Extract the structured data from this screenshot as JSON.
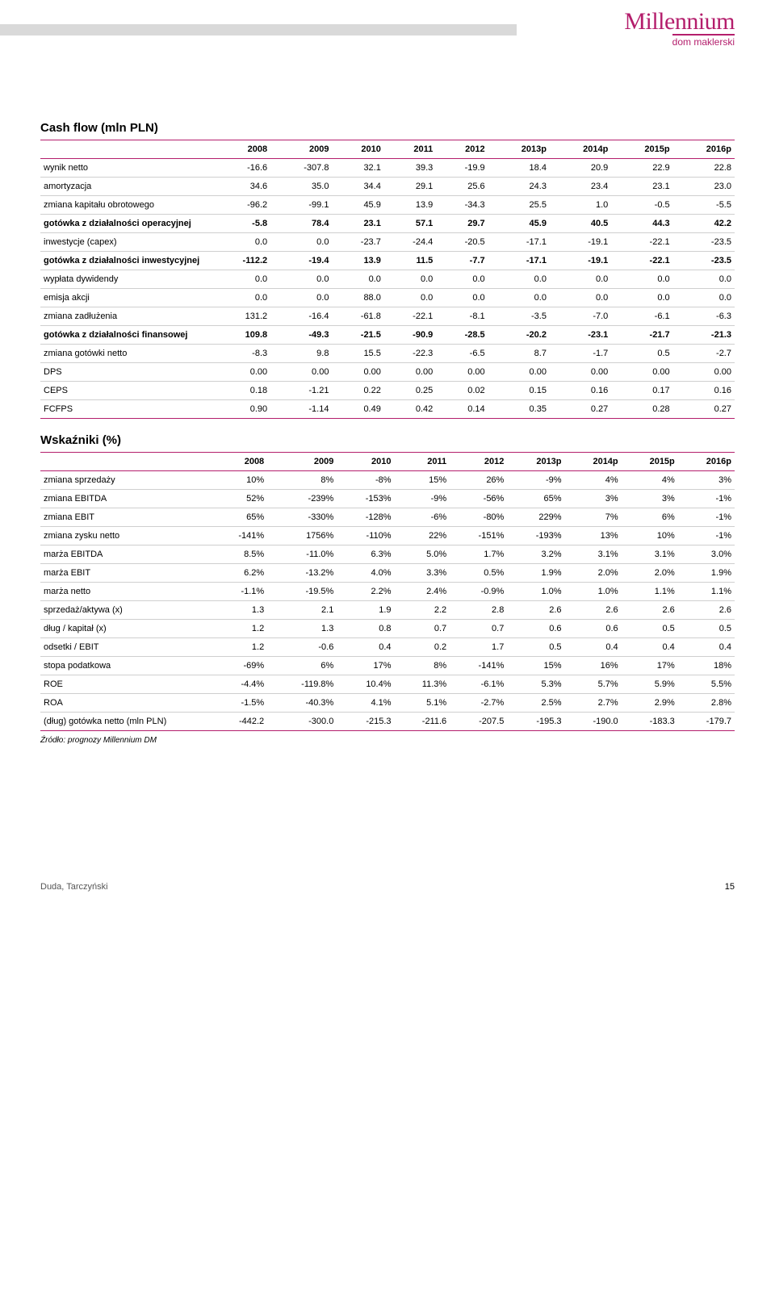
{
  "logo": {
    "main": "Millennium",
    "sub": "dom maklerski"
  },
  "cashflow": {
    "title": "Cash flow (mln PLN)",
    "headers": [
      "",
      "2008",
      "2009",
      "2010",
      "2011",
      "2012",
      "2013p",
      "2014p",
      "2015p",
      "2016p"
    ],
    "rows": [
      {
        "bold": false,
        "cells": [
          "wynik netto",
          "-16.6",
          "-307.8",
          "32.1",
          "39.3",
          "-19.9",
          "18.4",
          "20.9",
          "22.9",
          "22.8"
        ]
      },
      {
        "bold": false,
        "cells": [
          "amortyzacja",
          "34.6",
          "35.0",
          "34.4",
          "29.1",
          "25.6",
          "24.3",
          "23.4",
          "23.1",
          "23.0"
        ]
      },
      {
        "bold": false,
        "cells": [
          "zmiana kapitału obrotowego",
          "-96.2",
          "-99.1",
          "45.9",
          "13.9",
          "-34.3",
          "25.5",
          "1.0",
          "-0.5",
          "-5.5"
        ]
      },
      {
        "bold": true,
        "cells": [
          "gotówka z działalności operacyjnej",
          "-5.8",
          "78.4",
          "23.1",
          "57.1",
          "29.7",
          "45.9",
          "40.5",
          "44.3",
          "42.2"
        ]
      },
      {
        "bold": false,
        "cells": [
          "inwestycje (capex)",
          "0.0",
          "0.0",
          "-23.7",
          "-24.4",
          "-20.5",
          "-17.1",
          "-19.1",
          "-22.1",
          "-23.5"
        ]
      },
      {
        "bold": true,
        "cells": [
          "gotówka z działalności inwestycyjnej",
          "-112.2",
          "-19.4",
          "13.9",
          "11.5",
          "-7.7",
          "-17.1",
          "-19.1",
          "-22.1",
          "-23.5"
        ]
      },
      {
        "bold": false,
        "cells": [
          "wypłata dywidendy",
          "0.0",
          "0.0",
          "0.0",
          "0.0",
          "0.0",
          "0.0",
          "0.0",
          "0.0",
          "0.0"
        ]
      },
      {
        "bold": false,
        "cells": [
          "emisja akcji",
          "0.0",
          "0.0",
          "88.0",
          "0.0",
          "0.0",
          "0.0",
          "0.0",
          "0.0",
          "0.0"
        ]
      },
      {
        "bold": false,
        "cells": [
          "zmiana zadłużenia",
          "131.2",
          "-16.4",
          "-61.8",
          "-22.1",
          "-8.1",
          "-3.5",
          "-7.0",
          "-6.1",
          "-6.3"
        ]
      },
      {
        "bold": true,
        "cells": [
          "gotówka z działalności finansowej",
          "109.8",
          "-49.3",
          "-21.5",
          "-90.9",
          "-28.5",
          "-20.2",
          "-23.1",
          "-21.7",
          "-21.3"
        ]
      },
      {
        "bold": false,
        "cells": [
          "zmiana gotówki netto",
          "-8.3",
          "9.8",
          "15.5",
          "-22.3",
          "-6.5",
          "8.7",
          "-1.7",
          "0.5",
          "-2.7"
        ]
      },
      {
        "bold": false,
        "cells": [
          "DPS",
          "0.00",
          "0.00",
          "0.00",
          "0.00",
          "0.00",
          "0.00",
          "0.00",
          "0.00",
          "0.00"
        ]
      },
      {
        "bold": false,
        "cells": [
          "CEPS",
          "0.18",
          "-1.21",
          "0.22",
          "0.25",
          "0.02",
          "0.15",
          "0.16",
          "0.17",
          "0.16"
        ]
      },
      {
        "bold": false,
        "cells": [
          "FCFPS",
          "0.90",
          "-1.14",
          "0.49",
          "0.42",
          "0.14",
          "0.35",
          "0.27",
          "0.28",
          "0.27"
        ]
      }
    ]
  },
  "ratios": {
    "title": "Wskaźniki (%)",
    "headers": [
      "",
      "2008",
      "2009",
      "2010",
      "2011",
      "2012",
      "2013p",
      "2014p",
      "2015p",
      "2016p"
    ],
    "rows": [
      {
        "bold": false,
        "cells": [
          "zmiana sprzedaży",
          "10%",
          "8%",
          "-8%",
          "15%",
          "26%",
          "-9%",
          "4%",
          "4%",
          "3%"
        ]
      },
      {
        "bold": false,
        "cells": [
          "zmiana EBITDA",
          "52%",
          "-239%",
          "-153%",
          "-9%",
          "-56%",
          "65%",
          "3%",
          "3%",
          "-1%"
        ]
      },
      {
        "bold": false,
        "cells": [
          "zmiana EBIT",
          "65%",
          "-330%",
          "-128%",
          "-6%",
          "-80%",
          "229%",
          "7%",
          "6%",
          "-1%"
        ]
      },
      {
        "bold": false,
        "cells": [
          "zmiana zysku netto",
          "-141%",
          "1756%",
          "-110%",
          "22%",
          "-151%",
          "-193%",
          "13%",
          "10%",
          "-1%"
        ]
      },
      {
        "bold": false,
        "cells": [
          "marża EBITDA",
          "8.5%",
          "-11.0%",
          "6.3%",
          "5.0%",
          "1.7%",
          "3.2%",
          "3.1%",
          "3.1%",
          "3.0%"
        ]
      },
      {
        "bold": false,
        "cells": [
          "marża EBIT",
          "6.2%",
          "-13.2%",
          "4.0%",
          "3.3%",
          "0.5%",
          "1.9%",
          "2.0%",
          "2.0%",
          "1.9%"
        ]
      },
      {
        "bold": false,
        "cells": [
          "marża netto",
          "-1.1%",
          "-19.5%",
          "2.2%",
          "2.4%",
          "-0.9%",
          "1.0%",
          "1.0%",
          "1.1%",
          "1.1%"
        ]
      },
      {
        "bold": false,
        "cells": [
          "sprzedaż/aktywa (x)",
          "1.3",
          "2.1",
          "1.9",
          "2.2",
          "2.8",
          "2.6",
          "2.6",
          "2.6",
          "2.6"
        ]
      },
      {
        "bold": false,
        "cells": [
          "dług / kapitał (x)",
          "1.2",
          "1.3",
          "0.8",
          "0.7",
          "0.7",
          "0.6",
          "0.6",
          "0.5",
          "0.5"
        ]
      },
      {
        "bold": false,
        "cells": [
          "odsetki / EBIT",
          "1.2",
          "-0.6",
          "0.4",
          "0.2",
          "1.7",
          "0.5",
          "0.4",
          "0.4",
          "0.4"
        ]
      },
      {
        "bold": false,
        "cells": [
          "stopa podatkowa",
          "-69%",
          "6%",
          "17%",
          "8%",
          "-141%",
          "15%",
          "16%",
          "17%",
          "18%"
        ]
      },
      {
        "bold": false,
        "cells": [
          "ROE",
          "-4.4%",
          "-119.8%",
          "10.4%",
          "11.3%",
          "-6.1%",
          "5.3%",
          "5.7%",
          "5.9%",
          "5.5%"
        ]
      },
      {
        "bold": false,
        "cells": [
          "ROA",
          "-1.5%",
          "-40.3%",
          "4.1%",
          "5.1%",
          "-2.7%",
          "2.5%",
          "2.7%",
          "2.9%",
          "2.8%"
        ]
      },
      {
        "bold": false,
        "cells": [
          "(dług) gotówka netto (mln PLN)",
          "-442.2",
          "-300.0",
          "-215.3",
          "-211.6",
          "-207.5",
          "-195.3",
          "-190.0",
          "-183.3",
          "-179.7"
        ]
      }
    ]
  },
  "source_note": "Źródło: prognozy Millennium DM",
  "footer": {
    "authors": "Duda, Tarczyński",
    "page": "15"
  },
  "colors": {
    "brand": "#b41e6c",
    "header_bar": "#d9d9d9",
    "row_border": "#cfcfcf",
    "text": "#000000",
    "background": "#ffffff"
  }
}
